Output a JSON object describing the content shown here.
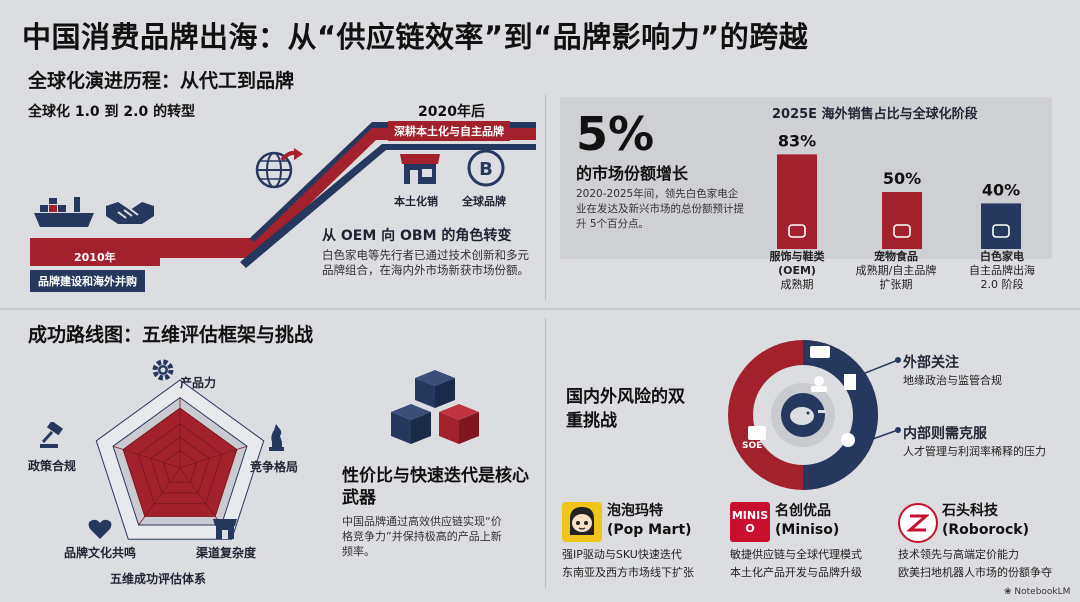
{
  "title": "中国消费品牌出海：从“供应链效率”到“品牌影响力”的跨越",
  "evolution": {
    "heading": "全球化演进历程：从代工到品牌",
    "subheading": "全球化 1.0 到 2.0 的转型",
    "year_2010": "2010年",
    "label_2010": "品牌建设和海外并购",
    "year_2020": "2020年后",
    "label_2020": "深耕本土化与自主品牌",
    "icon_local": "本土化销",
    "icon_brand": "全球品牌",
    "oem_title": "从 OEM 向 OBM 的角色转变",
    "oem_desc": "白色家电等先行者已通过技术创新和多元品牌组合，在海内外市场新获市场份额。"
  },
  "market": {
    "big_number": "5%",
    "big_label": "的市场份额增长",
    "desc": "2020-2025年间，领先白色家电企业在发达及新兴市场的总份额预计提升 5个百分点。",
    "chart_title": "2025E 海外销售占比与全球化阶段"
  },
  "chart_data": {
    "type": "bar",
    "title": "2025E 海外销售占比与全球化阶段",
    "categories": [
      "服饰与鞋类 (OEM) 成熟期",
      "宠物食品 成熟期/自主品牌扩张期",
      "白色家电 自主品牌出海 2.0 阶段"
    ],
    "values": [
      83,
      50,
      40
    ],
    "value_labels": [
      "83%",
      "50%",
      "40%"
    ],
    "ylim": [
      0,
      100
    ],
    "colors": [
      "#a3212c",
      "#a3212c",
      "#27385f"
    ]
  },
  "bars": [
    {
      "pct": "83%",
      "l1": "服饰与鞋类",
      "l2": "(OEM)",
      "l3": "成熟期"
    },
    {
      "pct": "50%",
      "l1": "宠物食品",
      "l2": "成熟期/自主品牌",
      "l3": "扩张期"
    },
    {
      "pct": "40%",
      "l1": "白色家电",
      "l2": "自主品牌出海",
      "l3": "2.0 阶段"
    }
  ],
  "roadmap": {
    "heading": "成功路线图：五维评估框架与挑战",
    "radar_title": "五维成功评估体系",
    "dims": [
      "产品力",
      "竞争格局",
      "渠道复杂度",
      "品牌文化共鸣",
      "政策合规"
    ],
    "core_title": "性价比与快速迭代是核心武器",
    "core_desc": "中国品牌通过高效供应链实现“价格竞争力”并保持极高的产品上新频率。"
  },
  "risk": {
    "title": "国内外风险的双重挑战",
    "ext_title": "外部关注",
    "ext_desc": "地缘政治与监管合规",
    "int_title": "内部则需克服",
    "int_desc": "人才管理与利润率稀释的压力"
  },
  "brands": [
    {
      "name": "泡泡玛特",
      "en": "(Pop Mart)",
      "d1": "强IP驱动与SKU快速迭代",
      "d2": "东南亚及西方市场线下扩张"
    },
    {
      "name": "名创优品",
      "en": "(Miniso)",
      "d1": "敏捷供应链与全球代理模式",
      "d2": "本土化产品开发与品牌升级"
    },
    {
      "name": "石头科技",
      "en": "(Roborock)",
      "d1": "技术领先与高端定价能力",
      "d2": "欧美扫地机器人市场的份额争夺"
    }
  ],
  "miniso_logo": "MINISO",
  "watermark": "NotebookLM",
  "colors": {
    "red": "#a3212c",
    "navy": "#27385f",
    "bg": "#dcdde0"
  }
}
